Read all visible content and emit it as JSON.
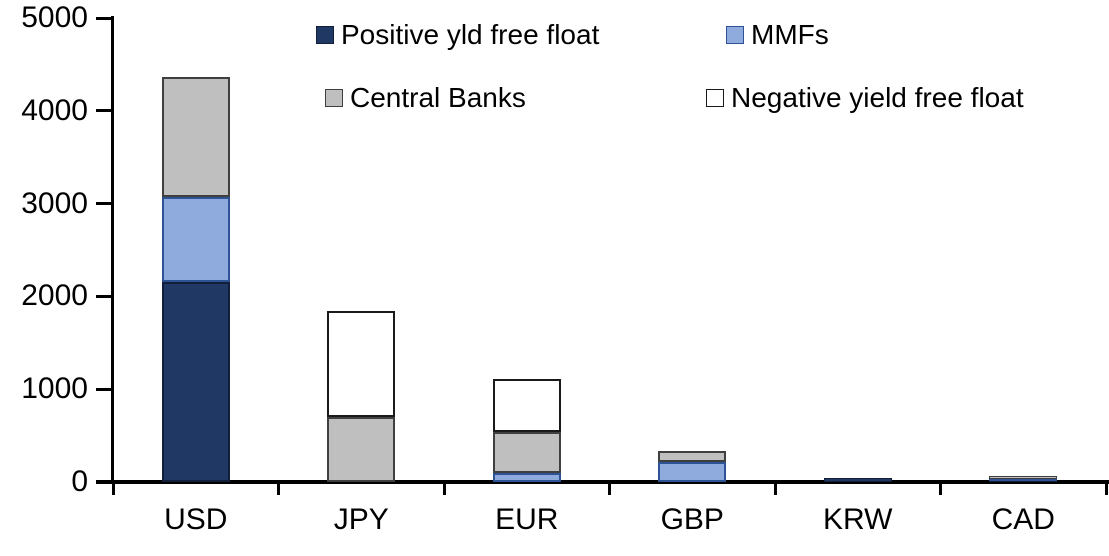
{
  "chart_data": {
    "type": "bar",
    "stacked": true,
    "title": "",
    "xlabel": "",
    "ylabel": "",
    "categories": [
      "USD",
      "JPY",
      "EUR",
      "GBP",
      "KRW",
      "CAD"
    ],
    "series": [
      {
        "name": "Positive yld free float",
        "color": "#1F3864",
        "border": "#111F38",
        "values": [
          2150,
          0,
          0,
          0,
          40,
          25
        ]
      },
      {
        "name": "MMFs",
        "color": "#8FAADC",
        "border": "#2E5395",
        "values": [
          925,
          0,
          100,
          215,
          0,
          10
        ]
      },
      {
        "name": "Central Banks",
        "color": "#BFBFBF",
        "border": "#3F3F3F",
        "values": [
          1285,
          700,
          440,
          115,
          0,
          25
        ]
      },
      {
        "name": "Negative yield free float",
        "color": "#FFFFFF",
        "border": "#1A1A1A",
        "values": [
          0,
          1140,
          570,
          0,
          0,
          0
        ]
      }
    ],
    "totals": [
      4360,
      1840,
      1110,
      330,
      40,
      60
    ],
    "ylim": [
      0,
      5000
    ],
    "yticks": [
      0,
      1000,
      2000,
      3000,
      4000,
      5000
    ],
    "grid": false,
    "legend_position": "top",
    "legend_layout": "two-column-two-row",
    "axis_color": "#000000",
    "background_color": "#FFFFFF"
  }
}
